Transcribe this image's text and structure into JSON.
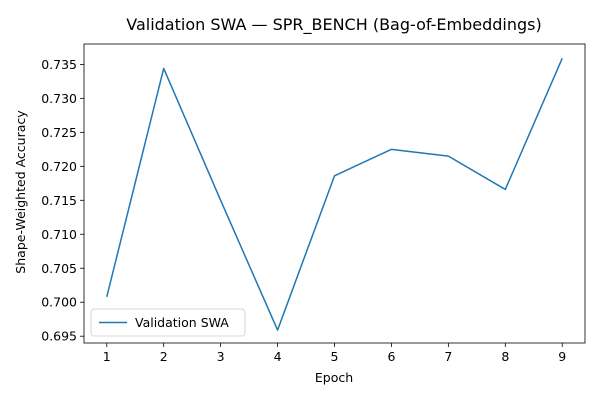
{
  "chart_data": {
    "type": "line",
    "title": "Validation SWA — SPR_BENCH (Bag-of-Embeddings)",
    "xlabel": "Epoch",
    "ylabel": "Shape-Weighted Accuracy",
    "x": [
      1,
      2,
      3,
      4,
      5,
      6,
      7,
      8,
      9
    ],
    "series": [
      {
        "name": "Validation SWA",
        "color": "#1f77b4",
        "values": [
          0.7008,
          0.7344,
          0.715,
          0.6959,
          0.7186,
          0.7225,
          0.7215,
          0.7166,
          0.7359
        ]
      }
    ],
    "xticks": [
      "1",
      "2",
      "3",
      "4",
      "5",
      "6",
      "7",
      "8",
      "9"
    ],
    "yticks": [
      "0.695",
      "0.700",
      "0.705",
      "0.710",
      "0.715",
      "0.720",
      "0.725",
      "0.730",
      "0.735"
    ],
    "xlim": [
      0.6,
      9.4
    ],
    "ylim": [
      0.694,
      0.738
    ],
    "grid": false,
    "legend_position": "lower-left"
  }
}
